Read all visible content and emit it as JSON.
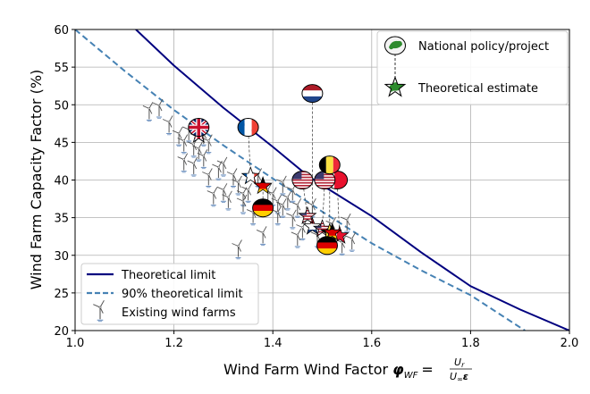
{
  "chart_data": {
    "type": "line",
    "title": "",
    "xlabel": "Wind Farm Wind Factor",
    "xlabel_symbol": "φ",
    "xlabel_sub": "WF",
    "xlabel_eq": "=",
    "xlabel_frac_num": "U",
    "xlabel_frac_num_sub": "r",
    "xlabel_frac_den": "U",
    "xlabel_frac_den_sub": "∞",
    "xlabel_frac_den_tail": "ε",
    "ylabel": "Wind Farm Capacity Factor (%)",
    "xlim": [
      1.0,
      2.0
    ],
    "ylim": [
      20,
      60
    ],
    "xticks": [
      "1.0",
      "1.2",
      "1.4",
      "1.6",
      "1.8",
      "2.0"
    ],
    "yticks": [
      "20",
      "25",
      "30",
      "35",
      "40",
      "45",
      "50",
      "55",
      "60"
    ],
    "grid": true,
    "series": [
      {
        "name": "Theoretical limit",
        "style": "solid",
        "color": "#00007f",
        "x": [
          1.123,
          1.2,
          1.3,
          1.35,
          1.4,
          1.47,
          1.5,
          1.6,
          1.7,
          1.8,
          1.9,
          2.0
        ],
        "y": [
          60,
          55.2,
          49.6,
          47.0,
          44.4,
          40.6,
          39.3,
          35.2,
          30.4,
          25.9,
          22.8,
          20
        ]
      },
      {
        "name": "90% theoretical limit",
        "style": "dashed",
        "color": "#4682b4",
        "x": [
          1.0,
          1.1,
          1.2,
          1.3,
          1.4,
          1.5,
          1.6,
          1.7,
          1.8,
          1.91
        ],
        "y": [
          60,
          54.5,
          49.3,
          44.6,
          40.2,
          35.8,
          31.6,
          28.0,
          24.7,
          20
        ]
      },
      {
        "name": "Existing wind farms",
        "type": "scatter",
        "marker": "wind-turbine",
        "points": [
          [
            1.15,
            48.8
          ],
          [
            1.17,
            49.2
          ],
          [
            1.19,
            47
          ],
          [
            1.21,
            45.5
          ],
          [
            1.22,
            44.5
          ],
          [
            1.23,
            46
          ],
          [
            1.24,
            44
          ],
          [
            1.25,
            43.5
          ],
          [
            1.26,
            42.5
          ],
          [
            1.27,
            44.5
          ],
          [
            1.24,
            41.5
          ],
          [
            1.22,
            42
          ],
          [
            1.27,
            40
          ],
          [
            1.29,
            41
          ],
          [
            1.3,
            41.5
          ],
          [
            1.32,
            40
          ],
          [
            1.33,
            39
          ],
          [
            1.3,
            38
          ],
          [
            1.28,
            37.5
          ],
          [
            1.31,
            37
          ],
          [
            1.34,
            37.5
          ],
          [
            1.35,
            38
          ],
          [
            1.37,
            40
          ],
          [
            1.39,
            38
          ],
          [
            1.4,
            37.5
          ],
          [
            1.41,
            36.5
          ],
          [
            1.36,
            35
          ],
          [
            1.41,
            35
          ],
          [
            1.42,
            36
          ],
          [
            1.43,
            37
          ],
          [
            1.44,
            34.5
          ],
          [
            1.45,
            36
          ],
          [
            1.33,
            30.5
          ],
          [
            1.38,
            32.3
          ],
          [
            1.42,
            39
          ],
          [
            1.44,
            38
          ],
          [
            1.46,
            33
          ],
          [
            1.49,
            32
          ],
          [
            1.52,
            33.5
          ],
          [
            1.54,
            31
          ],
          [
            1.56,
            31.5
          ],
          [
            1.55,
            34
          ],
          [
            1.48,
            36
          ],
          [
            1.34,
            36.5
          ],
          [
            1.26,
            45.5
          ],
          [
            1.45,
            32
          ]
        ]
      }
    ],
    "policies": [
      {
        "flag": "uk",
        "policy": [
          1.25,
          47.0
        ],
        "estimate": [
          1.25,
          46.0
        ]
      },
      {
        "flag": "fr",
        "policy": [
          1.35,
          47.0
        ],
        "estimate": [
          1.355,
          40.5
        ]
      },
      {
        "flag": "nl",
        "policy": [
          1.48,
          51.5
        ],
        "estimate": [
          1.48,
          33.8
        ]
      },
      {
        "flag": "us",
        "policy": [
          1.46,
          40.0
        ],
        "estimate": [
          1.47,
          35.2
        ]
      },
      {
        "flag": "dk",
        "policy": [
          1.53,
          40.0
        ],
        "estimate": [
          1.535,
          32.6
        ]
      },
      {
        "flag": "us",
        "policy": [
          1.505,
          40.0
        ],
        "estimate": [
          1.5,
          33.5
        ]
      },
      {
        "flag": "be",
        "policy": [
          1.515,
          42.0
        ],
        "estimate": [
          1.515,
          33.0
        ]
      },
      {
        "flag": "de",
        "policy": [
          1.38,
          36.3
        ],
        "estimate": [
          1.38,
          39.2
        ]
      },
      {
        "flag": "de",
        "policy": [
          1.51,
          31.3
        ],
        "estimate": [
          1.52,
          33.0
        ]
      }
    ],
    "legend_lower_left": {
      "placement": "lower-left",
      "entries": [
        "Theoretical limit",
        "90% theoretical limit",
        "Existing wind farms"
      ]
    },
    "legend_upper_right": {
      "placement": "upper-right",
      "entries": [
        "National policy/project",
        "Theoretical estimate"
      ]
    }
  }
}
